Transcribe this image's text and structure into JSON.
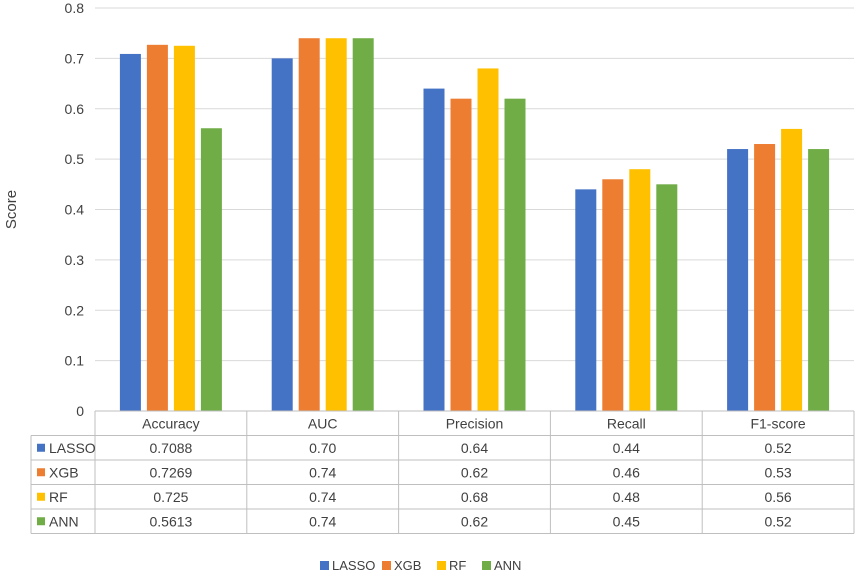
{
  "chart_data": {
    "type": "bar",
    "categories": [
      "Accuracy",
      "AUC",
      "Precision",
      "Recall",
      "F1-score"
    ],
    "series": [
      {
        "name": "LASSO",
        "color": "#4472C4",
        "values": [
          0.7088,
          0.7,
          0.64,
          0.44,
          0.52
        ],
        "labels": [
          "0.7088",
          "0.70",
          "0.64",
          "0.44",
          "0.52"
        ]
      },
      {
        "name": "XGB",
        "color": "#ED7D31",
        "values": [
          0.7269,
          0.74,
          0.62,
          0.46,
          0.53
        ],
        "labels": [
          "0.7269",
          "0.74",
          "0.62",
          "0.46",
          "0.53"
        ]
      },
      {
        "name": "RF",
        "color": "#FFC000",
        "values": [
          0.725,
          0.74,
          0.68,
          0.48,
          0.56
        ],
        "labels": [
          "0.725",
          "0.74",
          "0.68",
          "0.48",
          "0.56"
        ]
      },
      {
        "name": "ANN",
        "color": "#70AD47",
        "values": [
          0.5613,
          0.74,
          0.62,
          0.45,
          0.52
        ],
        "labels": [
          "0.5613",
          "0.74",
          "0.62",
          "0.45",
          "0.52"
        ]
      }
    ],
    "title": "",
    "xlabel": "",
    "ylabel": "Score",
    "ylim": [
      0,
      0.8
    ],
    "yticks": [
      "0",
      "0.1",
      "0.2",
      "0.3",
      "0.4",
      "0.5",
      "0.6",
      "0.7",
      "0.8"
    ],
    "grid": true,
    "data_table": true,
    "legend_position": "bottom"
  }
}
